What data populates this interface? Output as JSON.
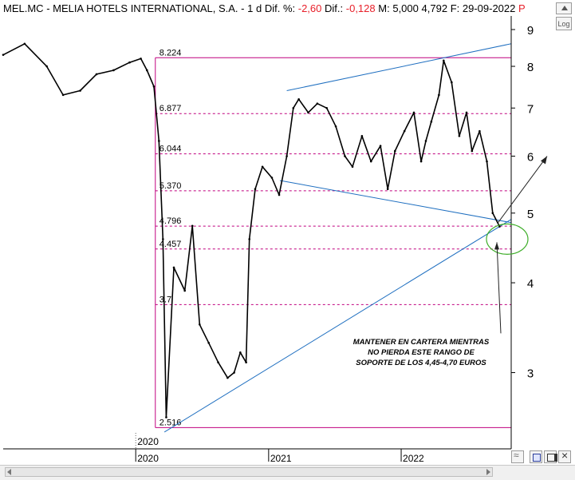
{
  "header": {
    "symbol": "MEL.MC",
    "dash": "-",
    "name": "MELIA HOTELS INTERNATIONAL, S.A.",
    "dash2": "-",
    "period": "1 d",
    "dif_pct_label": "Dif. %:",
    "dif_pct": "-2,60",
    "dif_label": "Dif.:",
    "dif": "-0,128",
    "max_label": "M:",
    "max": "5,000",
    "last": "4,792",
    "date_label": "F:",
    "date": "29-09-2022",
    "extra": "P"
  },
  "toolbar": {
    "log_label": "Log"
  },
  "colors": {
    "price": "#000000",
    "trendline": "#1f6fc0",
    "fib": "#c0007f",
    "annotation_circle": "#3fae2a",
    "arrow": "#222222"
  },
  "chart_data": {
    "type": "line",
    "title": "",
    "xlabel": "",
    "ylabel": "",
    "y_scale": "log",
    "ylim": [
      2.35,
      9.4
    ],
    "y_ticks": [
      3,
      4,
      5,
      6,
      7,
      8,
      9
    ],
    "x_ticks": [
      {
        "label": "2020",
        "date": "2020-01-01"
      },
      {
        "label": "2021",
        "date": "2021-01-01"
      },
      {
        "label": "2022",
        "date": "2022-01-01"
      }
    ],
    "x_axis_marker": "2020",
    "xlim": [
      "2019-01-01",
      "2022-10-31"
    ],
    "price_series": {
      "name": "",
      "x": [
        "2019-01-01",
        "2019-03-01",
        "2019-05-01",
        "2019-06-15",
        "2019-08-01",
        "2019-09-15",
        "2019-11-01",
        "2019-12-15",
        "2020-01-15",
        "2020-02-01",
        "2020-02-20",
        "2020-03-05",
        "2020-03-16",
        "2020-03-25",
        "2020-04-15",
        "2020-05-15",
        "2020-06-05",
        "2020-06-25",
        "2020-07-20",
        "2020-08-15",
        "2020-09-10",
        "2020-09-28",
        "2020-10-15",
        "2020-10-31",
        "2020-11-09",
        "2020-11-25",
        "2020-12-15",
        "2021-01-10",
        "2021-01-30",
        "2021-02-20",
        "2021-03-10",
        "2021-03-25",
        "2021-04-20",
        "2021-05-15",
        "2021-06-10",
        "2021-07-05",
        "2021-07-30",
        "2021-08-20",
        "2021-09-15",
        "2021-10-10",
        "2021-11-05",
        "2021-11-25",
        "2021-12-15",
        "2022-01-10",
        "2022-02-05",
        "2022-02-25",
        "2022-03-10",
        "2022-03-25",
        "2022-04-15",
        "2022-04-28",
        "2022-05-20",
        "2022-06-10",
        "2022-06-30",
        "2022-07-15",
        "2022-08-05",
        "2022-08-25",
        "2022-09-10",
        "2022-09-29"
      ],
      "y": [
        8.3,
        8.6,
        8.0,
        7.3,
        7.4,
        7.8,
        7.9,
        8.1,
        8.2,
        7.9,
        7.5,
        6.3,
        4.6,
        2.6,
        4.2,
        3.9,
        4.8,
        3.5,
        3.3,
        3.1,
        2.95,
        3.0,
        3.2,
        3.1,
        4.6,
        5.4,
        5.8,
        5.6,
        5.3,
        6.0,
        7.0,
        7.2,
        6.9,
        7.1,
        7.0,
        6.6,
        6.0,
        5.8,
        6.4,
        5.9,
        6.2,
        5.4,
        6.1,
        6.5,
        6.9,
        5.9,
        6.3,
        6.7,
        7.3,
        8.15,
        7.6,
        6.4,
        6.9,
        6.1,
        6.5,
        5.9,
        5.0,
        4.79
      ]
    },
    "fibonacci_levels": [
      {
        "label": "8.224",
        "value": 8.224
      },
      {
        "label": "6.877",
        "value": 6.877
      },
      {
        "label": "6.044",
        "value": 6.044
      },
      {
        "label": "5.370",
        "value": 5.37
      },
      {
        "label": "4.796",
        "value": 4.796
      },
      {
        "label": "4.457",
        "value": 4.457
      },
      {
        "label": "3.7",
        "value": 3.73
      },
      {
        "label": "2.516",
        "value": 2.516
      }
    ],
    "fibonacci_range": {
      "start": "2020-02-24",
      "end": "2022-10-31"
    },
    "trendlines": [
      {
        "x": [
          "2020-03-20",
          "2022-10-31"
        ],
        "y": [
          2.48,
          4.9
        ]
      },
      {
        "x": [
          "2021-02-01",
          "2022-10-31"
        ],
        "y": [
          5.55,
          4.85
        ]
      },
      {
        "x": [
          "2021-02-20",
          "2022-10-31"
        ],
        "y": [
          7.4,
          8.6
        ]
      }
    ],
    "annotation": {
      "lines": [
        "MANTENER EN CARTERA MIENTRAS",
        "NO PIERDA ESTE RANGO DE",
        "SOPORTE DE LOS 4,45-4,70 EUROS"
      ],
      "circle_center": {
        "x": "2022-10-20",
        "y": 4.6
      }
    }
  }
}
